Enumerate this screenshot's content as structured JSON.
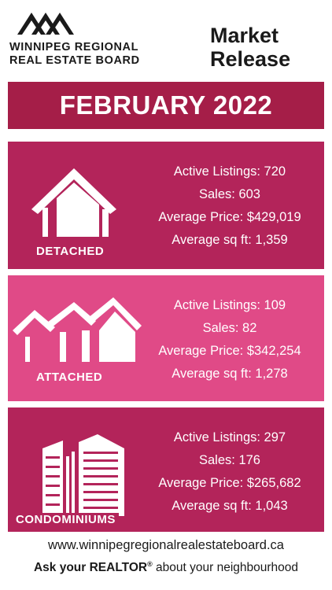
{
  "header": {
    "org_line1": "WINNIPEG REGIONAL",
    "org_line2": "REAL ESTATE BOARD",
    "release_line1": "Market",
    "release_line2": "Release"
  },
  "month_title": "FEBRUARY 2022",
  "colors": {
    "title_bar": "#a51e48",
    "detached_panel": "#b3245a",
    "attached_panel": "#e04a87",
    "condo_panel": "#b3245a"
  },
  "panels": [
    {
      "label": "DETACHED",
      "icon": "detached-house-icon",
      "active_listings": "Active Listings: 720",
      "sales": "Sales: 603",
      "average_price": "Average Price: $429,019",
      "average_sqft": "Average sq ft: 1,359"
    },
    {
      "label": "ATTACHED",
      "icon": "attached-houses-icon",
      "active_listings": "Active Listings: 109",
      "sales": "Sales: 82",
      "average_price": "Average Price: $342,254",
      "average_sqft": "Average sq ft: 1,278"
    },
    {
      "label": "CONDOMINIUMS",
      "icon": "condo-towers-icon",
      "active_listings": "Active Listings: 297",
      "sales": "Sales: 176",
      "average_price": "Average Price: $265,682",
      "average_sqft": "Average sq ft: 1,043"
    }
  ],
  "footer": {
    "url": "www.winnipegregionalrealestateboard.ca",
    "tagline_bold": "Ask your REALTOR",
    "tagline_reg": "®",
    "tagline_rest": " about your neighbourhood"
  }
}
